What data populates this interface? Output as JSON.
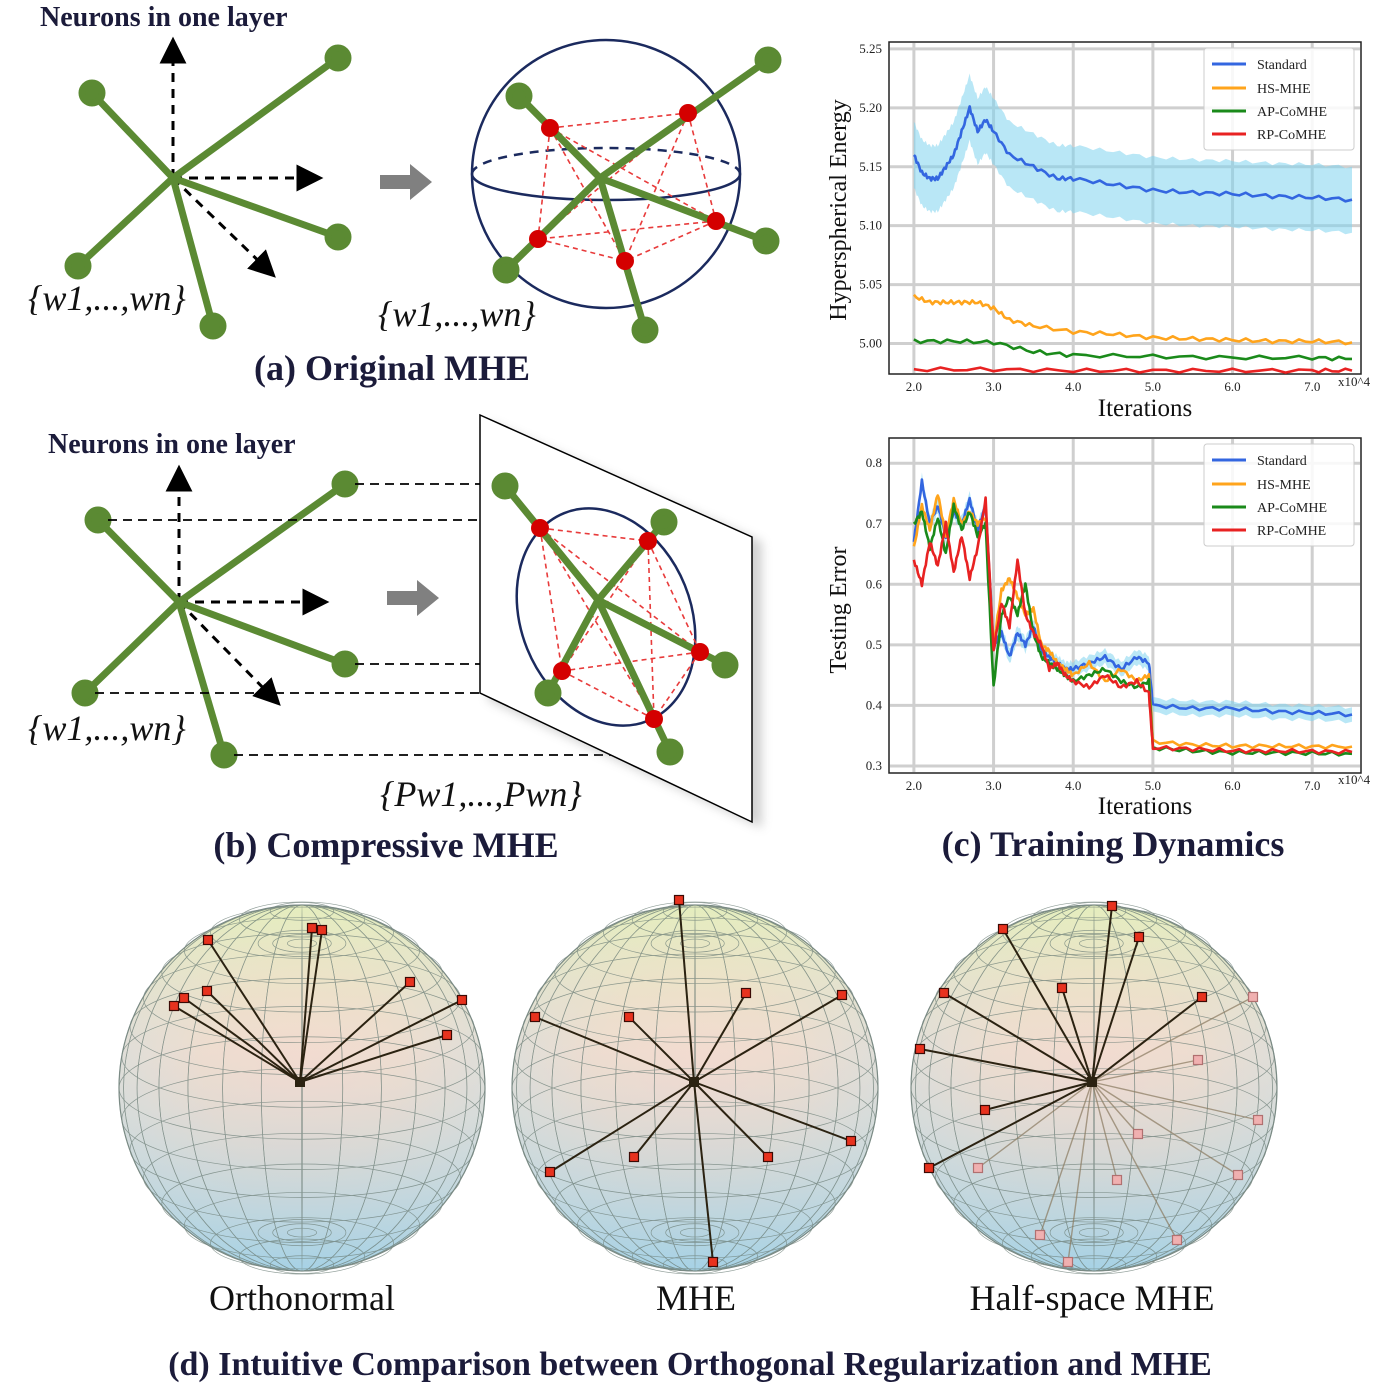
{
  "labels": {
    "neurons_a": "Neurons in one layer",
    "neurons_b": "Neurons in one layer",
    "w_set_a1": "{w1,...,wn}",
    "w_set_a2": "{w1,...,wn}",
    "w_set_b1": "{w1,...,wn}",
    "pw_set": "{Pw1,...,Pwn}",
    "caption_a": "(a) Original MHE",
    "caption_b": "(b) Compressive MHE",
    "caption_c": "(c) Training Dynamics",
    "caption_d": "(d) Intuitive Comparison between Orthogonal Regularization and MHE",
    "sphere_1": "Orthonormal",
    "sphere_2": "MHE",
    "sphere_3": "Half-space MHE"
  },
  "colors": {
    "green": "#5b8a33",
    "red": "#d40000",
    "navy": "#1b2a5e",
    "standard": "#3366e0",
    "hs_mhe": "#ffa41c",
    "ap_comhe": "#1a8a1a",
    "rp_comhe": "#e82222"
  },
  "chart_data": [
    {
      "type": "line",
      "xlabel": "Iterations",
      "ylabel": "Hyperspherical Energy",
      "x_multiplier": "x10^4",
      "x_ticks": [
        "2.0",
        "3.0",
        "4.0",
        "5.0",
        "6.0",
        "7.0"
      ],
      "y_ticks": [
        "5.25",
        "5.20",
        "5.15",
        "5.10",
        "5.05",
        "5.00"
      ],
      "xlim": [
        1.7,
        7.6
      ],
      "ylim": [
        4.975,
        5.255
      ],
      "legend": "top-right",
      "series": [
        {
          "name": "Standard",
          "color": "#3366e0",
          "band": true,
          "x": [
            2.0,
            2.1,
            2.2,
            2.3,
            2.4,
            2.5,
            2.6,
            2.7,
            2.8,
            2.9,
            3.0,
            3.2,
            3.5,
            3.8,
            4.0,
            4.5,
            5.0,
            5.5,
            6.0,
            6.5,
            7.0,
            7.5
          ],
          "y": [
            5.16,
            5.145,
            5.14,
            5.14,
            5.15,
            5.16,
            5.18,
            5.2,
            5.18,
            5.19,
            5.18,
            5.16,
            5.15,
            5.14,
            5.14,
            5.135,
            5.13,
            5.128,
            5.127,
            5.125,
            5.124,
            5.122
          ]
        },
        {
          "name": "HS-MHE",
          "color": "#ffa41c",
          "band": false,
          "x": [
            2.0,
            2.2,
            2.4,
            2.6,
            2.8,
            3.0,
            3.2,
            3.5,
            4.0,
            4.5,
            5.0,
            5.5,
            6.0,
            6.5,
            7.0,
            7.5
          ],
          "y": [
            5.04,
            5.035,
            5.035,
            5.035,
            5.035,
            5.03,
            5.02,
            5.015,
            5.01,
            5.008,
            5.005,
            5.004,
            5.003,
            5.002,
            5.002,
            5.001
          ]
        },
        {
          "name": "AP-CoMHE",
          "color": "#1a8a1a",
          "band": false,
          "x": [
            2.0,
            2.5,
            3.0,
            3.5,
            4.0,
            5.0,
            6.0,
            7.0,
            7.5
          ],
          "y": [
            5.002,
            5.002,
            5.001,
            4.993,
            4.99,
            4.989,
            4.988,
            4.988,
            4.987
          ]
        },
        {
          "name": "RP-CoMHE",
          "color": "#e82222",
          "band": false,
          "x": [
            2.0,
            3.0,
            4.0,
            5.0,
            6.0,
            7.0,
            7.5
          ],
          "y": [
            4.978,
            4.978,
            4.977,
            4.977,
            4.977,
            4.977,
            4.977
          ]
        }
      ]
    },
    {
      "type": "line",
      "xlabel": "Iterations",
      "ylabel": "Testing Error",
      "x_multiplier": "x10^4",
      "x_ticks": [
        "2.0",
        "3.0",
        "4.0",
        "5.0",
        "6.0",
        "7.0"
      ],
      "y_ticks": [
        "0.8",
        "0.7",
        "0.6",
        "0.5",
        "0.4",
        "0.3"
      ],
      "xlim": [
        1.7,
        7.6
      ],
      "ylim": [
        0.29,
        0.84
      ],
      "legend": "top-right",
      "series": [
        {
          "name": "Standard",
          "color": "#3366e0",
          "band": true,
          "x": [
            2.0,
            2.1,
            2.2,
            2.3,
            2.4,
            2.5,
            2.6,
            2.7,
            2.8,
            2.9,
            3.0,
            3.1,
            3.2,
            3.3,
            3.4,
            3.5,
            3.6,
            3.7,
            3.8,
            3.9,
            4.0,
            4.2,
            4.4,
            4.6,
            4.8,
            4.95,
            5.0,
            5.5,
            6.0,
            6.5,
            7.0,
            7.5
          ],
          "y": [
            0.67,
            0.77,
            0.7,
            0.73,
            0.68,
            0.72,
            0.7,
            0.74,
            0.69,
            0.73,
            0.5,
            0.52,
            0.48,
            0.52,
            0.5,
            0.53,
            0.49,
            0.48,
            0.47,
            0.46,
            0.46,
            0.47,
            0.48,
            0.46,
            0.48,
            0.47,
            0.4,
            0.395,
            0.395,
            0.39,
            0.388,
            0.385
          ]
        },
        {
          "name": "HS-MHE",
          "color": "#ffa41c",
          "band": false,
          "x": [
            2.0,
            2.1,
            2.2,
            2.3,
            2.4,
            2.5,
            2.6,
            2.7,
            2.8,
            2.9,
            3.0,
            3.1,
            3.2,
            3.3,
            3.4,
            3.5,
            3.6,
            3.7,
            3.8,
            3.9,
            4.0,
            4.2,
            4.4,
            4.6,
            4.8,
            4.95,
            5.0,
            5.5,
            6.0,
            6.5,
            7.0,
            7.5
          ],
          "y": [
            0.66,
            0.73,
            0.69,
            0.75,
            0.68,
            0.74,
            0.7,
            0.72,
            0.7,
            0.71,
            0.5,
            0.59,
            0.61,
            0.58,
            0.55,
            0.56,
            0.5,
            0.49,
            0.47,
            0.46,
            0.45,
            0.47,
            0.44,
            0.46,
            0.44,
            0.45,
            0.34,
            0.335,
            0.333,
            0.333,
            0.332,
            0.332
          ]
        },
        {
          "name": "AP-CoMHE",
          "color": "#1a8a1a",
          "band": false,
          "x": [
            2.0,
            2.1,
            2.2,
            2.3,
            2.4,
            2.5,
            2.6,
            2.7,
            2.8,
            2.9,
            3.0,
            3.1,
            3.2,
            3.3,
            3.4,
            3.5,
            3.6,
            3.7,
            3.8,
            3.9,
            4.0,
            4.2,
            4.4,
            4.6,
            4.8,
            4.95,
            5.0,
            5.5,
            6.0,
            6.5,
            7.0,
            7.5
          ],
          "y": [
            0.7,
            0.72,
            0.66,
            0.71,
            0.65,
            0.73,
            0.69,
            0.72,
            0.68,
            0.7,
            0.43,
            0.55,
            0.58,
            0.55,
            0.6,
            0.52,
            0.48,
            0.47,
            0.46,
            0.45,
            0.44,
            0.45,
            0.46,
            0.44,
            0.43,
            0.44,
            0.33,
            0.325,
            0.322,
            0.322,
            0.321,
            0.32
          ]
        },
        {
          "name": "RP-CoMHE",
          "color": "#e82222",
          "band": false,
          "x": [
            2.0,
            2.1,
            2.2,
            2.3,
            2.4,
            2.5,
            2.6,
            2.7,
            2.8,
            2.9,
            3.0,
            3.1,
            3.2,
            3.3,
            3.4,
            3.5,
            3.6,
            3.7,
            3.8,
            3.9,
            4.0,
            4.2,
            4.4,
            4.6,
            4.8,
            4.95,
            5.0,
            5.5,
            6.0,
            6.5,
            7.0,
            7.5
          ],
          "y": [
            0.64,
            0.6,
            0.67,
            0.63,
            0.7,
            0.62,
            0.68,
            0.61,
            0.66,
            0.74,
            0.49,
            0.57,
            0.53,
            0.64,
            0.55,
            0.52,
            0.5,
            0.46,
            0.47,
            0.45,
            0.44,
            0.43,
            0.45,
            0.43,
            0.44,
            0.42,
            0.33,
            0.328,
            0.325,
            0.325,
            0.324,
            0.323
          ]
        }
      ]
    }
  ]
}
